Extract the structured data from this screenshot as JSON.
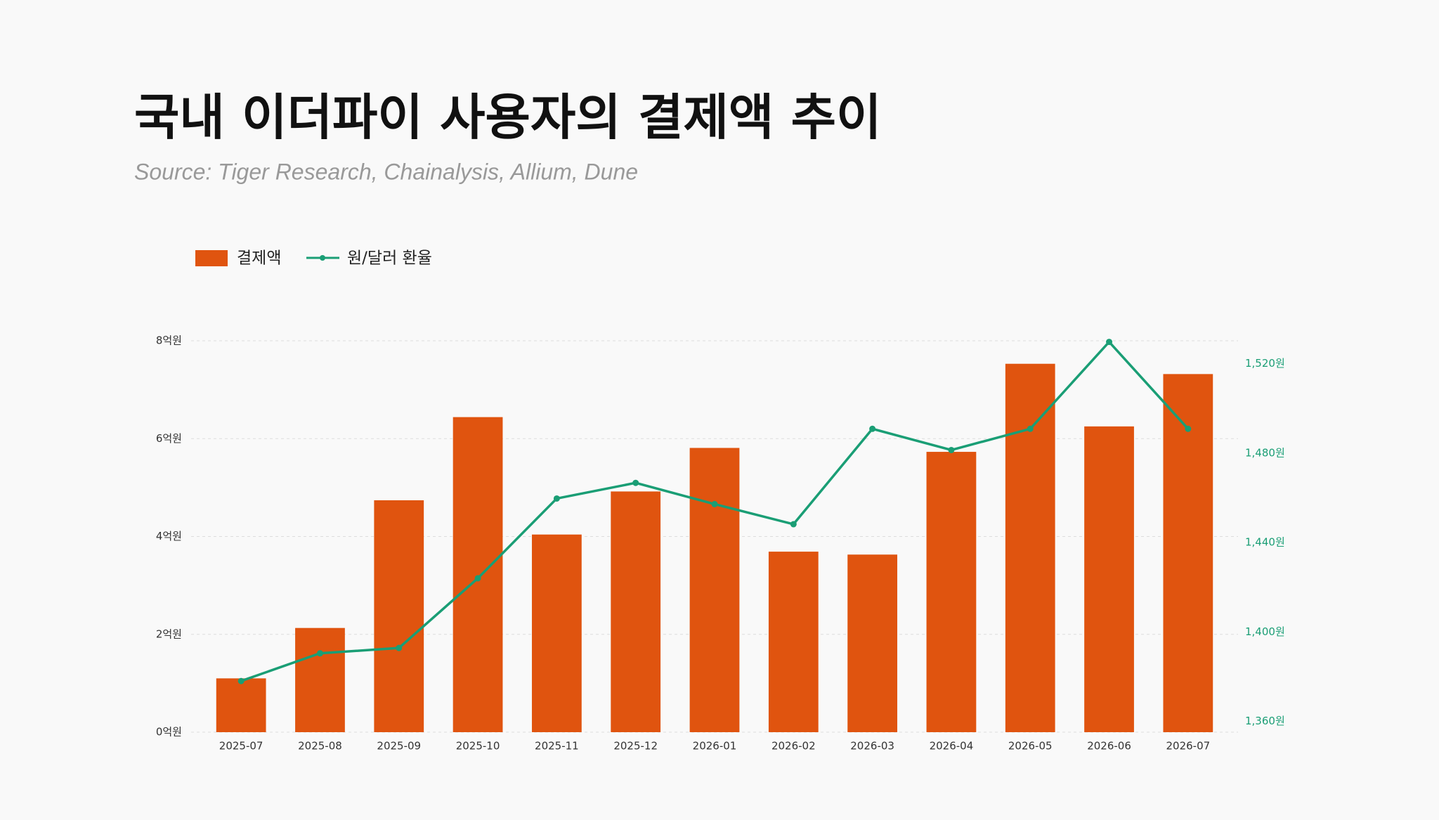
{
  "chart_data": {
    "type": "bar",
    "title": "국내 이더파이 사용자의 결제액 추이",
    "subtitle": "Source: Tiger Research, Chainalysis, Allium, Dune",
    "categories": [
      "2025-07",
      "2025-08",
      "2025-09",
      "2025-10",
      "2025-11",
      "2025-12",
      "2026-01",
      "2026-02",
      "2026-03",
      "2026-04",
      "2026-05",
      "2026-06",
      "2026-07"
    ],
    "series": [
      {
        "name": "결제액",
        "type": "bar",
        "color": "#e0540f",
        "values": [
          1.1,
          2.13,
          4.74,
          6.44,
          4.04,
          4.92,
          5.81,
          3.69,
          3.63,
          5.73,
          7.53,
          6.25,
          7.32
        ]
      },
      {
        "name": "원/달러 환율",
        "type": "line",
        "axis": "y2",
        "color": "#1a9e75",
        "values": [
          1378,
          1390.4,
          1392.8,
          1424,
          1459.7,
          1466.7,
          1457.2,
          1448.2,
          1490.9,
          1481.4,
          1490.9,
          1529.8,
          1490.9
        ]
      }
    ],
    "ylim": [
      0,
      8
    ],
    "yticks": [
      {
        "value": 0,
        "label": "0억원"
      },
      {
        "value": 2,
        "label": "2억원"
      },
      {
        "value": 4,
        "label": "4억원"
      },
      {
        "value": 6,
        "label": "6억원"
      },
      {
        "value": 8,
        "label": "8억원"
      }
    ],
    "y2lim": [
      1355.1,
      1530.3
    ],
    "y2ticks": [
      {
        "value": 1360,
        "label": "1,360원"
      },
      {
        "value": 1400,
        "label": "1,400원"
      },
      {
        "value": 1440,
        "label": "1,440원"
      },
      {
        "value": 1480,
        "label": "1,480원"
      },
      {
        "value": 1520,
        "label": "1,520원"
      }
    ],
    "grid": true
  }
}
